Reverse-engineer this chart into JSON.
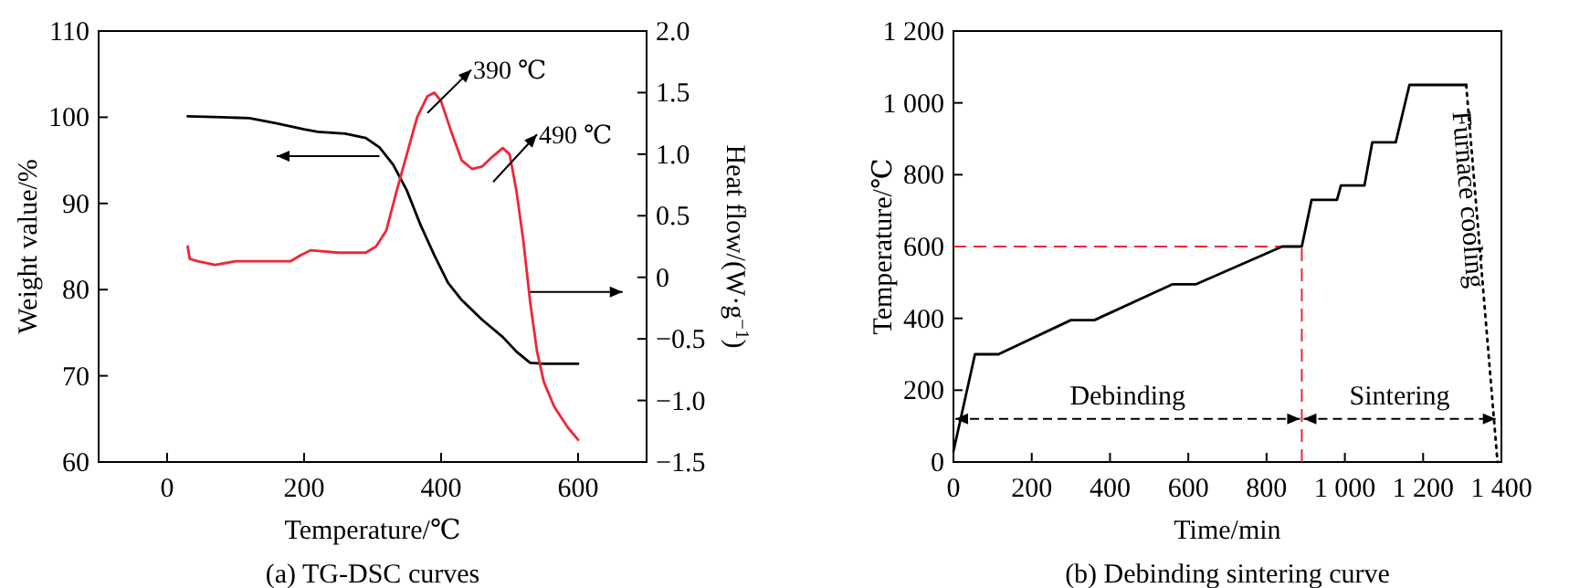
{
  "chart_data": [
    {
      "type": "line",
      "title": "(a) TG-DSC curves",
      "xlabel": "Temperature/℃",
      "ylabel": "Weight value/%",
      "y2label": "Heat flow/(W·g$^{−1}$)",
      "xlim": [
        -100,
        700
      ],
      "xticks": [
        0,
        200,
        400,
        600
      ],
      "ylim": [
        60,
        110
      ],
      "yticks": [
        60,
        70,
        80,
        90,
        100,
        110
      ],
      "y2lim": [
        -1.5,
        2.0
      ],
      "y2ticks": [
        {
          "value": -1.5,
          "label": "−1.5"
        },
        {
          "value": -1.0,
          "label": "−1.0"
        },
        {
          "value": -0.5,
          "label": "−0.5"
        },
        0,
        {
          "value": 0.5,
          "label": "0.5"
        },
        {
          "value": 1.0,
          "label": "1.0"
        },
        {
          "value": 1.5,
          "label": "1.5"
        },
        {
          "value": 2.0,
          "label": "2.0"
        }
      ],
      "grid": false,
      "line_style": "solid",
      "marker": "none",
      "series": [
        {
          "color": "#000000",
          "x": [
            30,
            80,
            120,
            160,
            200,
            220,
            260,
            290,
            310,
            330,
            350,
            370,
            390,
            410,
            430,
            460,
            490,
            510,
            530,
            550,
            600
          ],
          "values": [
            100.1,
            100,
            99.9,
            99.3,
            98.6,
            98.3,
            98.1,
            97.6,
            96.5,
            94.5,
            91.5,
            87.5,
            84,
            80.8,
            78.8,
            76.5,
            74.5,
            72.8,
            71.5,
            71.4,
            71.4
          ]
        },
        {
          "color": "#ee2737",
          "axis": "y2",
          "x": [
            30,
            33,
            45,
            70,
            100,
            150,
            180,
            195,
            210,
            250,
            290,
            305,
            320,
            335,
            350,
            365,
            380,
            390,
            400,
            415,
            430,
            445,
            460,
            475,
            490,
            500,
            510,
            520,
            530,
            540,
            550,
            565,
            585,
            600
          ],
          "values": [
            0.25,
            0.15,
            0.13,
            0.1,
            0.13,
            0.13,
            0.13,
            0.18,
            0.22,
            0.2,
            0.2,
            0.25,
            0.38,
            0.7,
            1.0,
            1.3,
            1.47,
            1.5,
            1.43,
            1.18,
            0.95,
            0.88,
            0.9,
            0.98,
            1.05,
            1.0,
            0.7,
            0.3,
            -0.2,
            -0.6,
            -0.85,
            -1.05,
            -1.22,
            -1.32
          ]
        }
      ],
      "annotations": [
        "390 ℃",
        "490 ℃"
      ]
    },
    {
      "type": "line",
      "title": "(b) Debinding sintering curve",
      "xlabel": "Time/min",
      "ylabel": "Temperature/℃",
      "xlim": [
        0,
        1400
      ],
      "xticks": [
        0,
        200,
        400,
        600,
        800,
        {
          "value": 1000,
          "label": "1 000"
        },
        {
          "value": 1200,
          "label": "1 200"
        },
        {
          "value": 1400,
          "label": "1 400"
        }
      ],
      "ylim": [
        0,
        1200
      ],
      "yticks": [
        0,
        200,
        400,
        600,
        800,
        {
          "value": 1000,
          "label": "1 000"
        },
        {
          "value": 1200,
          "label": "1 200"
        }
      ],
      "grid": false,
      "marker": "none",
      "series": [
        {
          "color": "#000000",
          "line_style": "solid",
          "x": [
            0,
            55,
            115,
            300,
            360,
            560,
            620,
            840,
            890,
            915,
            980,
            990,
            1050,
            1070,
            1130,
            1165,
            1310
          ],
          "values": [
            30,
            300,
            300,
            395,
            395,
            495,
            495,
            600,
            600,
            730,
            730,
            770,
            770,
            890,
            890,
            1050,
            1050
          ]
        },
        {
          "name": "Furnace cooling",
          "color": "#000000",
          "line_style": "dotted",
          "x": [
            1310,
            1390
          ],
          "values": [
            1050,
            0
          ]
        }
      ],
      "ref_lines": [
        {
          "axis": "y",
          "value": 600,
          "color": "#ee2737",
          "line_style": "dashed"
        },
        {
          "axis": "x",
          "value": 890,
          "color": "#ee2737",
          "line_style": "dashed"
        }
      ],
      "annotations": [
        "Debinding",
        "Sintering"
      ]
    }
  ]
}
